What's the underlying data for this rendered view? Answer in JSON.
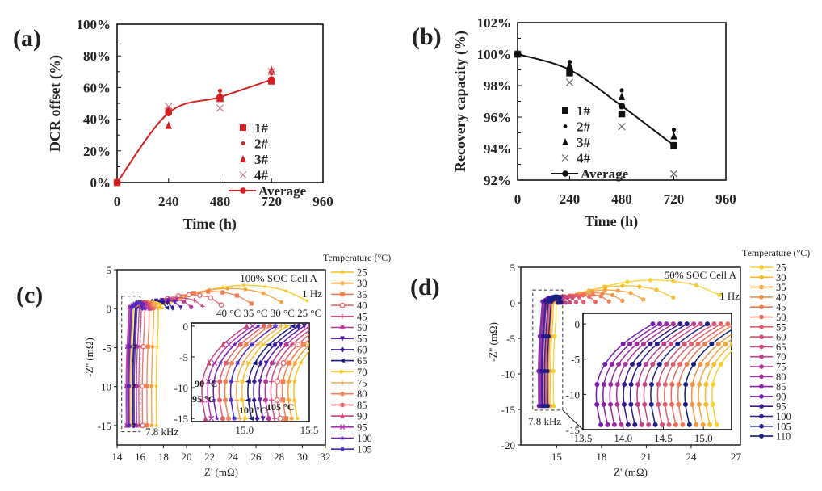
{
  "chart_data": [
    {
      "id": "a",
      "panel_label": "(a)",
      "type": "scatter",
      "title": "",
      "xlabel": "Time (h)",
      "ylabel": "DCR offset (%)",
      "xlim": [
        0,
        960
      ],
      "ylim": [
        0,
        100
      ],
      "xticks": [
        0,
        240,
        480,
        720,
        960
      ],
      "xtick_labels": [
        "0",
        "240",
        "480",
        "720",
        "960"
      ],
      "yticks": [
        0,
        20,
        40,
        60,
        80,
        100
      ],
      "ytick_labels": [
        "0%",
        "20%",
        "40%",
        "60%",
        "80%",
        "100%"
      ],
      "color": "#d42020",
      "legend_position": "lower-right",
      "series": [
        {
          "name": "1#",
          "marker": "square",
          "x": [
            0,
            240,
            480,
            720
          ],
          "y": [
            0,
            45,
            53,
            64
          ]
        },
        {
          "name": "2#",
          "marker": "circle",
          "x": [
            0,
            240,
            480,
            720
          ],
          "y": [
            0,
            47,
            58,
            69
          ]
        },
        {
          "name": "3#",
          "marker": "triangle",
          "x": [
            0,
            240,
            480,
            720
          ],
          "y": [
            0,
            36,
            55,
            71
          ]
        },
        {
          "name": "4#",
          "marker": "x",
          "x": [
            0,
            240,
            480,
            720
          ],
          "y": [
            0,
            48,
            47,
            70
          ]
        },
        {
          "name": "Average",
          "marker": "circle-line",
          "x": [
            0,
            240,
            480,
            720
          ],
          "y": [
            0,
            44,
            54,
            65
          ]
        }
      ]
    },
    {
      "id": "b",
      "panel_label": "(b)",
      "type": "scatter",
      "title": "",
      "xlabel": "Time (h)",
      "ylabel": "Recovery capacity (%)",
      "xlim": [
        0,
        960
      ],
      "ylim": [
        92,
        102
      ],
      "xticks": [
        0,
        240,
        480,
        720,
        960
      ],
      "xtick_labels": [
        "0",
        "240",
        "480",
        "720",
        "960"
      ],
      "yticks": [
        92,
        94,
        96,
        98,
        100,
        102
      ],
      "ytick_labels": [
        "92%",
        "94%",
        "96%",
        "98%",
        "100%",
        "102%"
      ],
      "color": "#111111",
      "legend_position": "lower-left",
      "series": [
        {
          "name": "1#",
          "marker": "square",
          "x": [
            0,
            240,
            480,
            720
          ],
          "y": [
            100,
            98.8,
            96.2,
            94.2
          ]
        },
        {
          "name": "2#",
          "marker": "circle",
          "x": [
            0,
            240,
            480,
            720
          ],
          "y": [
            100,
            99.5,
            97.7,
            95.2
          ]
        },
        {
          "name": "3#",
          "marker": "triangle",
          "x": [
            0,
            240,
            480,
            720
          ],
          "y": [
            100,
            99.3,
            97.3,
            94.8
          ]
        },
        {
          "name": "4#",
          "marker": "x",
          "x": [
            0,
            240,
            480,
            720
          ],
          "y": [
            100,
            98.2,
            95.4,
            92.4
          ]
        },
        {
          "name": "Average",
          "marker": "circle-line",
          "x": [
            0,
            240,
            480,
            720
          ],
          "y": [
            100,
            99.0,
            96.7,
            94.2
          ]
        }
      ]
    },
    {
      "id": "c",
      "panel_label": "(c)",
      "type": "line",
      "title": "100% SOC Cell A",
      "xlabel": "Z' (mΩ)",
      "ylabel": "-Z'' (mΩ)",
      "xlim": [
        14,
        32
      ],
      "ylim": [
        -17.5,
        5
      ],
      "xticks": [
        14,
        16,
        18,
        20,
        22,
        24,
        26,
        28,
        30,
        32
      ],
      "yticks": [
        5,
        0,
        -5,
        -10,
        -15
      ],
      "legend_title": "Temperature (°C)",
      "legend_position": "right",
      "annotations": [
        "1 Hz",
        "40 °C 35 °C 30 °C 25 °C",
        "7.8 kHz"
      ],
      "inset": {
        "xlim": [
          14.59,
          15.5
        ],
        "ylim": [
          -15.5,
          0.5
        ],
        "xticks": [
          15.0,
          15.5
        ],
        "xtick_labels": [
          "15.0",
          "15.5"
        ],
        "yticks": [
          0,
          -5,
          -10,
          -15
        ],
        "annotations": [
          "90 °C",
          "95 °C",
          "100 °C",
          "105 °C"
        ]
      },
      "series": [
        {
          "name": "25",
          "color": "#f5c518",
          "marker": "star",
          "x_hf": 17.4,
          "x_lf": 30.4,
          "peak": 2.8
        },
        {
          "name": "30",
          "color": "#f7a030",
          "marker": "asterisk",
          "x_hf": 17.0,
          "x_lf": 28.2,
          "peak": 2.4
        },
        {
          "name": "35",
          "color": "#f08050",
          "marker": "square",
          "x_hf": 16.6,
          "x_lf": 25.6,
          "peak": 2.0
        },
        {
          "name": "40",
          "color": "#e56a6a",
          "marker": "circle-half",
          "x_hf": 16.2,
          "x_lf": 23.0,
          "peak": 1.6
        },
        {
          "name": "45",
          "color": "#d64d85",
          "marker": "plus",
          "x_hf": 15.9,
          "x_lf": 21.4,
          "peak": 1.2
        },
        {
          "name": "50",
          "color": "#b8359a",
          "marker": "circle",
          "x_hf": 15.7,
          "x_lf": 20.4,
          "peak": 1.0
        },
        {
          "name": "55",
          "color": "#5a1fa8",
          "marker": "triangle-down",
          "x_hf": 15.5,
          "x_lf": 19.5,
          "peak": 0.9
        },
        {
          "name": "60",
          "color": "#3a1a9a",
          "marker": "diamond",
          "x_hf": 15.4,
          "x_lf": 18.8,
          "peak": 0.8
        },
        {
          "name": "65",
          "color": "#1c1f7a",
          "marker": "triangle-left",
          "x_hf": 15.35,
          "x_lf": 18.3,
          "peak": 0.8
        },
        {
          "name": "70",
          "color": "#f8c32c",
          "marker": "triangle-right",
          "x_hf": 15.2,
          "x_lf": 17.9,
          "peak": 0.7
        },
        {
          "name": "75",
          "color": "#f6a955",
          "marker": "plus",
          "x_hf": 15.1,
          "x_lf": 17.5,
          "peak": 0.7
        },
        {
          "name": "80",
          "color": "#ef8456",
          "marker": "circle",
          "x_hf": 15.05,
          "x_lf": 17.2,
          "peak": 0.7
        },
        {
          "name": "85",
          "color": "#e26068",
          "marker": "circle",
          "x_hf": 15.0,
          "x_lf": 17.0,
          "peak": 0.6
        },
        {
          "name": "90",
          "color": "#c9437f",
          "marker": "triangle",
          "x_hf": 14.8,
          "x_lf": 16.8,
          "peak": 0.6
        },
        {
          "name": "95",
          "color": "#b030b0",
          "marker": "x",
          "x_hf": 14.85,
          "x_lf": 16.6,
          "peak": 0.6
        },
        {
          "name": "100",
          "color": "#6a1fb8",
          "marker": "star",
          "x_hf": 14.95,
          "x_lf": 16.4,
          "peak": 0.6
        },
        {
          "name": "105",
          "color": "#4a2ac8",
          "marker": "asterisk",
          "x_hf": 15.05,
          "x_lf": 16.2,
          "peak": 0.6
        }
      ]
    },
    {
      "id": "d",
      "panel_label": "(d)",
      "type": "line",
      "title": "50% SOC Cell A",
      "xlabel": "Z' (mΩ)",
      "ylabel": "-Z'' (mΩ)",
      "xlim": [
        12.6,
        27.3
      ],
      "ylim": [
        -20,
        5
      ],
      "xticks": [
        15,
        18,
        21,
        24,
        27
      ],
      "yticks": [
        5,
        0,
        -5,
        -10,
        -15,
        -20
      ],
      "legend_title": "Temperature (°C)",
      "legend_position": "right",
      "annotations": [
        "1 Hz",
        "7.8 kHz"
      ],
      "inset": {
        "xlim": [
          13.5,
          15.35
        ],
        "ylim": [
          -15,
          1.5
        ],
        "xticks": [
          13.5,
          14.0,
          14.5,
          15.0
        ],
        "xtick_labels": [
          "13.5",
          "14.0",
          "14.5",
          "15.0"
        ],
        "yticks": [
          0,
          -5,
          -10,
          -15
        ]
      },
      "series": [
        {
          "name": "25",
          "color": "#f2d132",
          "x_hf": 14.8,
          "x_lf": 25.9,
          "peak": 3.0
        },
        {
          "name": "30",
          "color": "#f4c030",
          "x_hf": 14.6,
          "x_lf": 22.8,
          "peak": 2.2
        },
        {
          "name": "35",
          "color": "#f4a440",
          "x_hf": 14.5,
          "x_lf": 20.8,
          "peak": 1.6
        },
        {
          "name": "40",
          "color": "#f29048",
          "x_hf": 14.45,
          "x_lf": 19.4,
          "peak": 1.2
        },
        {
          "name": "45",
          "color": "#ee7c52",
          "x_hf": 14.4,
          "x_lf": 18.5,
          "peak": 1.0
        },
        {
          "name": "50",
          "color": "#e86c5e",
          "x_hf": 14.35,
          "x_lf": 17.6,
          "peak": 0.9
        },
        {
          "name": "55",
          "color": "#df5e6a",
          "x_hf": 14.3,
          "x_lf": 16.8,
          "peak": 0.8
        },
        {
          "name": "60",
          "color": "#d45376",
          "x_hf": 14.25,
          "x_lf": 16.3,
          "peak": 0.7
        },
        {
          "name": "65",
          "color": "#c84882",
          "x_hf": 14.2,
          "x_lf": 15.9,
          "peak": 0.7
        },
        {
          "name": "70",
          "color": "#bb3d8c",
          "x_hf": 14.1,
          "x_lf": 15.6,
          "peak": 0.6
        },
        {
          "name": "75",
          "color": "#ad3396",
          "x_hf": 13.95,
          "x_lf": 15.4,
          "peak": 0.6
        },
        {
          "name": "80",
          "color": "#9c2aa0",
          "x_hf": 13.9,
          "x_lf": 15.3,
          "peak": 0.6
        },
        {
          "name": "85",
          "color": "#8a22a8",
          "x_hf": 13.85,
          "x_lf": 15.2,
          "peak": 0.6
        },
        {
          "name": "90",
          "color": "#751cb0",
          "x_hf": 13.8,
          "x_lf": 15.1,
          "peak": 0.6
        },
        {
          "name": "95",
          "color": "#3a1a8a",
          "x_hf": 14.0,
          "x_lf": 15.1,
          "peak": 0.6
        },
        {
          "name": "100",
          "color": "#2c1a8e",
          "x_hf": 14.05,
          "x_lf": 15.1,
          "peak": 0.6
        },
        {
          "name": "105",
          "color": "#1f1e8c",
          "x_hf": 14.2,
          "x_lf": 15.2,
          "peak": 0.7
        },
        {
          "name": "110",
          "color": "#17207a",
          "x_hf": 14.4,
          "x_lf": 15.3,
          "peak": 0.7
        }
      ]
    }
  ]
}
